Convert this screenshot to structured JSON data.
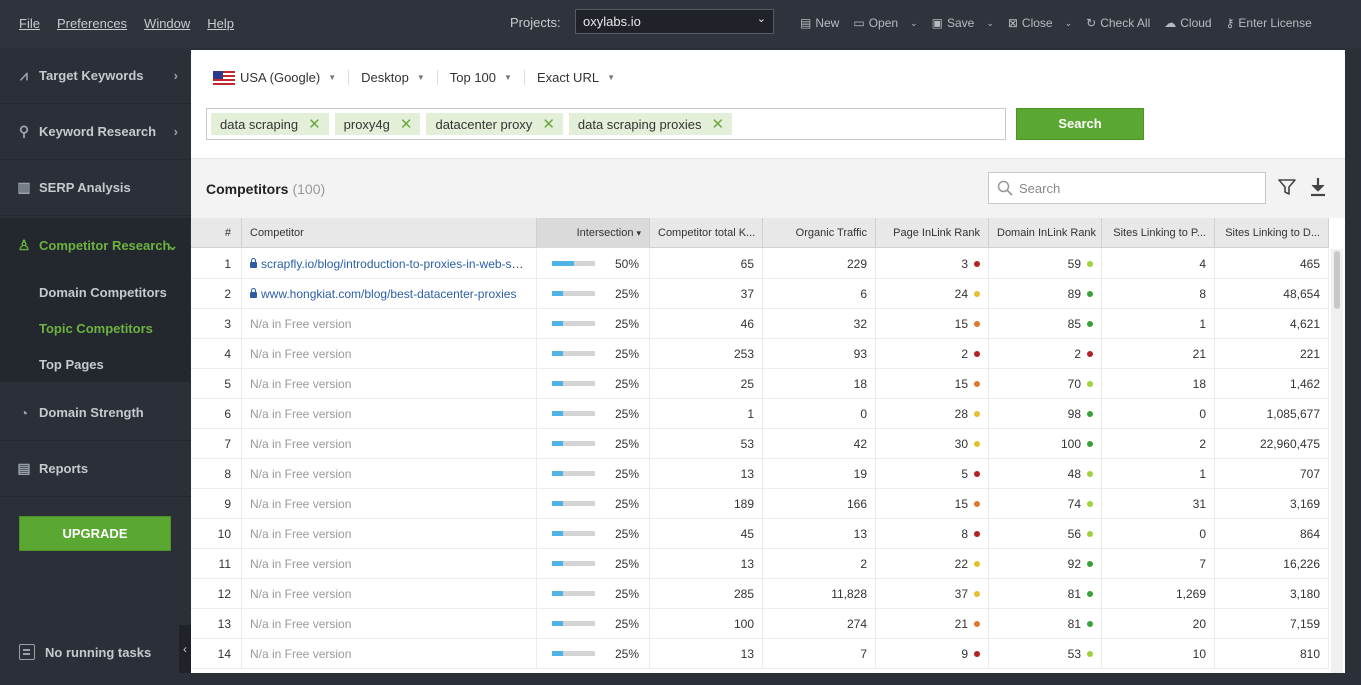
{
  "menu": [
    "File",
    "Preferences",
    "Window",
    "Help"
  ],
  "projects": {
    "label": "Projects:",
    "selected": "oxylabs.io"
  },
  "toolbar": [
    {
      "label": "New",
      "icon": "file-icon",
      "glyph": "▤",
      "dropdown": false
    },
    {
      "label": "Open",
      "icon": "folder-icon",
      "glyph": "▭",
      "dropdown": true
    },
    {
      "label": "Save",
      "icon": "save-icon",
      "glyph": "▣",
      "dropdown": true
    },
    {
      "label": "Close",
      "icon": "close-icon",
      "glyph": "⊠",
      "dropdown": true
    },
    {
      "label": "Check All",
      "icon": "refresh-icon",
      "glyph": "↻",
      "dropdown": false
    },
    {
      "label": "Cloud",
      "icon": "cloud-icon",
      "glyph": "☁",
      "dropdown": false
    },
    {
      "label": "Enter License",
      "icon": "key-icon",
      "glyph": "⚷",
      "dropdown": false
    }
  ],
  "sidebar": {
    "items": [
      {
        "label": "Target Keywords",
        "icon": "chart-icon",
        "glyph": "⩘",
        "arrow": "›"
      },
      {
        "label": "Keyword Research",
        "icon": "search-icon",
        "glyph": "⚲",
        "arrow": "›"
      },
      {
        "label": "SERP Analysis",
        "icon": "bar-chart-icon",
        "glyph": "▥",
        "arrow": ""
      },
      {
        "label": "Competitor Research",
        "icon": "user-icon",
        "glyph": "♙",
        "arrow": "⌄"
      },
      {
        "label": "Domain Strength",
        "icon": "gauge-icon",
        "glyph": "◔",
        "arrow": ""
      },
      {
        "label": "Reports",
        "icon": "report-icon",
        "glyph": "▤",
        "arrow": ""
      }
    ],
    "subitems": [
      "Domain Competitors",
      "Topic Competitors",
      "Top Pages"
    ],
    "upgrade_label": "UPGRADE",
    "tasks_label": "No running tasks",
    "collapse_glyph": "‹"
  },
  "filters": [
    {
      "label": "USA (Google)",
      "flag": true
    },
    {
      "label": "Desktop",
      "flag": false
    },
    {
      "label": "Top 100",
      "flag": false
    },
    {
      "label": "Exact URL",
      "flag": false
    }
  ],
  "keywords": [
    "data scraping",
    "proxy4g",
    "datacenter proxy",
    "data scraping proxies"
  ],
  "search_button": "Search",
  "competitors": {
    "title": "Competitors",
    "count": "(100)",
    "search_placeholder": "Search"
  },
  "colors": {
    "accent": "#5aa832",
    "dot_red": "#b52020",
    "dot_orange": "#e0782a",
    "dot_yellow": "#e3c02b",
    "dot_lightgreen": "#9ed13d",
    "dot_green": "#3ba03b",
    "bar_fill": "#4fb3e8"
  },
  "table": {
    "headers": [
      "#",
      "Competitor",
      "Intersection",
      "Competitor total K...",
      "Organic Traffic",
      "Page InLink Rank",
      "Domain InLink Rank",
      "Sites Linking to P...",
      "Sites Linking to D..."
    ],
    "sort_glyph": "▾",
    "rows": [
      {
        "idx": "1",
        "competitor": "scrapfly.io/blog/introduction-to-proxies-in-web-scraping",
        "link": true,
        "pct": "50%",
        "fill": 0.5,
        "total": "65",
        "traffic": "229",
        "page_rank": "3",
        "page_dot": "red",
        "domain_rank": "59",
        "domain_dot": "lightgreen",
        "sites_p": "4",
        "sites_d": "465"
      },
      {
        "idx": "2",
        "competitor": "www.hongkiat.com/blog/best-datacenter-proxies",
        "link": true,
        "pct": "25%",
        "fill": 0.25,
        "total": "37",
        "traffic": "6",
        "page_rank": "24",
        "page_dot": "yellow",
        "domain_rank": "89",
        "domain_dot": "green",
        "sites_p": "8",
        "sites_d": "48,654"
      },
      {
        "idx": "3",
        "competitor": "N/a in Free version",
        "link": false,
        "pct": "25%",
        "fill": 0.25,
        "total": "46",
        "traffic": "32",
        "page_rank": "15",
        "page_dot": "orange",
        "domain_rank": "85",
        "domain_dot": "green",
        "sites_p": "1",
        "sites_d": "4,621"
      },
      {
        "idx": "4",
        "competitor": "N/a in Free version",
        "link": false,
        "pct": "25%",
        "fill": 0.25,
        "total": "253",
        "traffic": "93",
        "page_rank": "2",
        "page_dot": "red",
        "domain_rank": "2",
        "domain_dot": "red",
        "sites_p": "21",
        "sites_d": "221"
      },
      {
        "idx": "5",
        "competitor": "N/a in Free version",
        "link": false,
        "pct": "25%",
        "fill": 0.25,
        "total": "25",
        "traffic": "18",
        "page_rank": "15",
        "page_dot": "orange",
        "domain_rank": "70",
        "domain_dot": "lightgreen",
        "sites_p": "18",
        "sites_d": "1,462"
      },
      {
        "idx": "6",
        "competitor": "N/a in Free version",
        "link": false,
        "pct": "25%",
        "fill": 0.25,
        "total": "1",
        "traffic": "0",
        "page_rank": "28",
        "page_dot": "yellow",
        "domain_rank": "98",
        "domain_dot": "green",
        "sites_p": "0",
        "sites_d": "1,085,677"
      },
      {
        "idx": "7",
        "competitor": "N/a in Free version",
        "link": false,
        "pct": "25%",
        "fill": 0.25,
        "total": "53",
        "traffic": "42",
        "page_rank": "30",
        "page_dot": "yellow",
        "domain_rank": "100",
        "domain_dot": "green",
        "sites_p": "2",
        "sites_d": "22,960,475"
      },
      {
        "idx": "8",
        "competitor": "N/a in Free version",
        "link": false,
        "pct": "25%",
        "fill": 0.25,
        "total": "13",
        "traffic": "19",
        "page_rank": "5",
        "page_dot": "red",
        "domain_rank": "48",
        "domain_dot": "lightgreen",
        "sites_p": "1",
        "sites_d": "707"
      },
      {
        "idx": "9",
        "competitor": "N/a in Free version",
        "link": false,
        "pct": "25%",
        "fill": 0.25,
        "total": "189",
        "traffic": "166",
        "page_rank": "15",
        "page_dot": "orange",
        "domain_rank": "74",
        "domain_dot": "lightgreen",
        "sites_p": "31",
        "sites_d": "3,169"
      },
      {
        "idx": "10",
        "competitor": "N/a in Free version",
        "link": false,
        "pct": "25%",
        "fill": 0.25,
        "total": "45",
        "traffic": "13",
        "page_rank": "8",
        "page_dot": "red",
        "domain_rank": "56",
        "domain_dot": "lightgreen",
        "sites_p": "0",
        "sites_d": "864"
      },
      {
        "idx": "11",
        "competitor": "N/a in Free version",
        "link": false,
        "pct": "25%",
        "fill": 0.25,
        "total": "13",
        "traffic": "2",
        "page_rank": "22",
        "page_dot": "yellow",
        "domain_rank": "92",
        "domain_dot": "green",
        "sites_p": "7",
        "sites_d": "16,226"
      },
      {
        "idx": "12",
        "competitor": "N/a in Free version",
        "link": false,
        "pct": "25%",
        "fill": 0.25,
        "total": "285",
        "traffic": "11,828",
        "page_rank": "37",
        "page_dot": "yellow",
        "domain_rank": "81",
        "domain_dot": "green",
        "sites_p": "1,269",
        "sites_d": "3,180"
      },
      {
        "idx": "13",
        "competitor": "N/a in Free version",
        "link": false,
        "pct": "25%",
        "fill": 0.25,
        "total": "100",
        "traffic": "274",
        "page_rank": "21",
        "page_dot": "orange",
        "domain_rank": "81",
        "domain_dot": "green",
        "sites_p": "20",
        "sites_d": "7,159"
      },
      {
        "idx": "14",
        "competitor": "N/a in Free version",
        "link": false,
        "pct": "25%",
        "fill": 0.25,
        "total": "13",
        "traffic": "7",
        "page_rank": "9",
        "page_dot": "red",
        "domain_rank": "53",
        "domain_dot": "lightgreen",
        "sites_p": "10",
        "sites_d": "810"
      }
    ]
  }
}
